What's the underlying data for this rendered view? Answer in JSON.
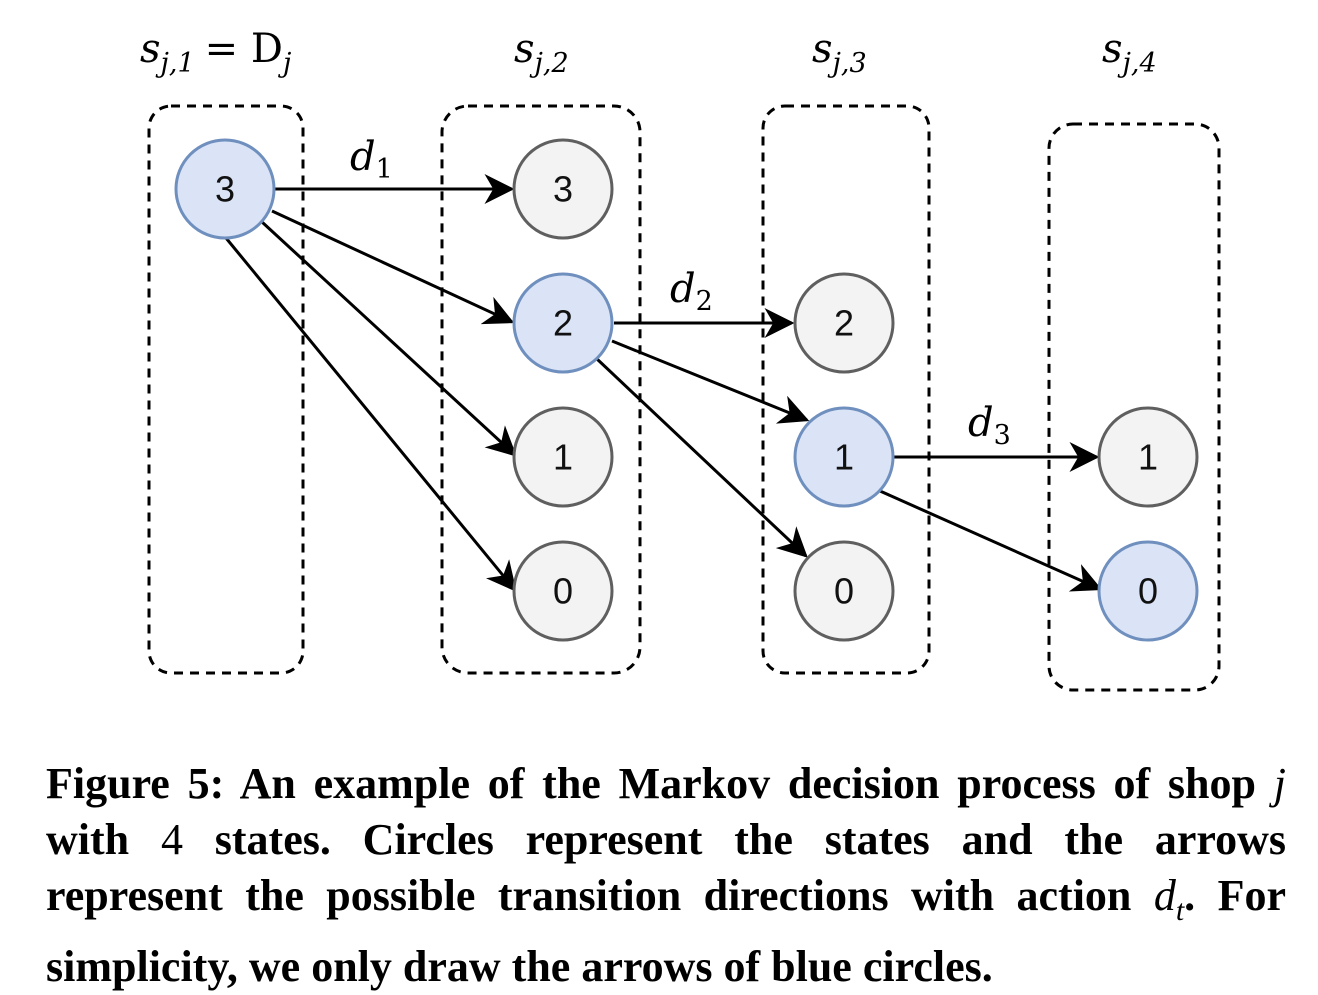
{
  "columns": [
    {
      "label": "s",
      "sub": "j,1",
      "suffix": "= D",
      "suffix_sub": "j"
    },
    {
      "label": "s",
      "sub": "j,2"
    },
    {
      "label": "s",
      "sub": "j,3"
    },
    {
      "label": "s",
      "sub": "j,4"
    }
  ],
  "states": {
    "col1": [
      "3"
    ],
    "col2": [
      "3",
      "2",
      "1",
      "0"
    ],
    "col3": [
      "2",
      "1",
      "0"
    ],
    "col4": [
      "1",
      "0"
    ]
  },
  "actions": [
    {
      "letter": "d",
      "sub": "1"
    },
    {
      "letter": "d",
      "sub": "2"
    },
    {
      "letter": "d",
      "sub": "3"
    }
  ],
  "highlighted_states": [
    "s_j1=3",
    "s_j2=2",
    "s_j3=1",
    "s_j4=0"
  ],
  "colors": {
    "blue_fill": "#dae4f6",
    "blue_stroke": "#6f8fbe",
    "gray_fill": "#f3f3f3",
    "gray_stroke": "#5f5f5f",
    "arrow": "#000000"
  },
  "caption": {
    "lead": "Figure 5: An example of the Markov decision process of shop",
    "var_j": "j",
    "with": "with",
    "num_states": "4",
    "middle": "states. Circles represent the states and the arrows represent the possible transition directions with action",
    "action_var": "d",
    "action_sub": "t",
    "end": ". For simplicity, we only draw the arrows of blue circles."
  }
}
